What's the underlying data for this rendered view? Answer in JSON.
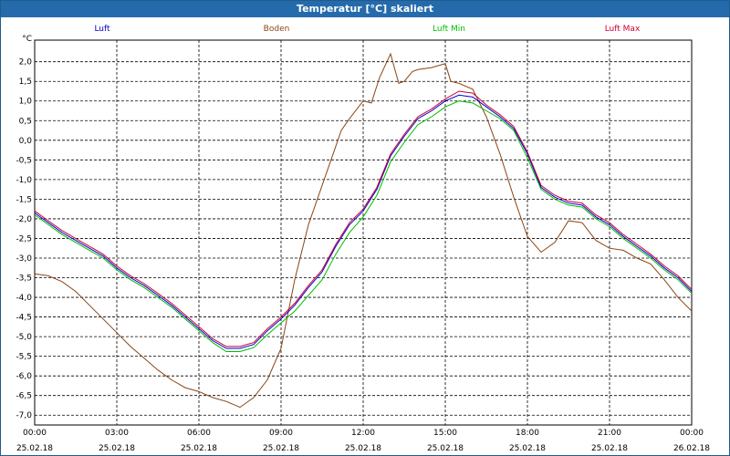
{
  "window": {
    "title": "Temperatur [°C] skaliert"
  },
  "chart_data": {
    "type": "line",
    "title": "Temperatur [°C] skaliert",
    "ylabel": "°C",
    "ylim": [
      -7.25,
      2.55
    ],
    "xlim": [
      0,
      24
    ],
    "grid": true,
    "legend_position": "top",
    "yticks": [
      "2,0",
      "1,5",
      "1,0",
      "0,5",
      "0,0",
      "-0,5",
      "-1,0",
      "-1,5",
      "-2,0",
      "-2,5",
      "-3,0",
      "-3,5",
      "-4,0",
      "-4,5",
      "-5,0",
      "-5,5",
      "-6,0",
      "-6,5",
      "-7,0"
    ],
    "ytick_values": [
      2.0,
      1.5,
      1.0,
      0.5,
      0.0,
      -0.5,
      -1.0,
      -1.5,
      -2.0,
      -2.5,
      -3.0,
      -3.5,
      -4.0,
      -4.5,
      -5.0,
      -5.5,
      -6.0,
      -6.5,
      -7.0
    ],
    "xticks": [
      {
        "time": "00:00",
        "date": "25.02.18",
        "hour": 0
      },
      {
        "time": "03:00",
        "date": "25.02.18",
        "hour": 3
      },
      {
        "time": "06:00",
        "date": "25.02.18",
        "hour": 6
      },
      {
        "time": "09:00",
        "date": "25.02.18",
        "hour": 9
      },
      {
        "time": "12:00",
        "date": "25.02.18",
        "hour": 12
      },
      {
        "time": "15:00",
        "date": "25.02.18",
        "hour": 15
      },
      {
        "time": "18:00",
        "date": "25.02.18",
        "hour": 18
      },
      {
        "time": "21:00",
        "date": "25.02.18",
        "hour": 21
      },
      {
        "time": "00:00",
        "date": "26.02.18",
        "hour": 24
      }
    ],
    "series": [
      {
        "name": "Luft",
        "color": "#0000cc",
        "offset": 0.0,
        "x": [
          0,
          0.5,
          1,
          1.5,
          2,
          2.5,
          3,
          3.5,
          4,
          4.5,
          5,
          5.5,
          6,
          6.5,
          7,
          7.5,
          8,
          8.5,
          9,
          9.5,
          10,
          10.5,
          11,
          11.5,
          12,
          12.5,
          13,
          13.5,
          14,
          14.5,
          15,
          15.5,
          16,
          16.5,
          17,
          17.5,
          18,
          18.5,
          19,
          19.5,
          20,
          20.5,
          21,
          21.5,
          22,
          22.5,
          23,
          23.5,
          24
        ],
        "y": [
          -1.85,
          -2.1,
          -2.35,
          -2.55,
          -2.75,
          -2.95,
          -3.25,
          -3.5,
          -3.7,
          -3.95,
          -4.2,
          -4.5,
          -4.8,
          -5.1,
          -5.3,
          -5.3,
          -5.2,
          -4.85,
          -4.55,
          -4.2,
          -3.75,
          -3.35,
          -2.7,
          -2.15,
          -1.8,
          -1.25,
          -0.4,
          0.1,
          0.55,
          0.75,
          1.0,
          1.15,
          1.1,
          0.85,
          0.6,
          0.3,
          -0.35,
          -1.2,
          -1.45,
          -1.6,
          -1.65,
          -1.95,
          -2.15,
          -2.45,
          -2.7,
          -2.95,
          -3.25,
          -3.5,
          -3.85
        ]
      },
      {
        "name": "Boden",
        "color": "#8b4513",
        "x": [
          0,
          0.5,
          1,
          1.5,
          2,
          2.5,
          3,
          3.5,
          4,
          4.5,
          5,
          5.5,
          6,
          6.5,
          7,
          7.5,
          8,
          8.5,
          9,
          9.5,
          10,
          10.5,
          11,
          11.2,
          11.5,
          12,
          12.3,
          12.6,
          13,
          13.3,
          13.5,
          13.8,
          14,
          14.5,
          15,
          15.2,
          15.5,
          16,
          16.5,
          17,
          17.5,
          18,
          18.5,
          19,
          19.5,
          20,
          20.5,
          21,
          21.5,
          22,
          22.5,
          23,
          23.5,
          24
        ],
        "y": [
          -3.4,
          -3.45,
          -3.6,
          -3.85,
          -4.2,
          -4.55,
          -4.9,
          -5.25,
          -5.55,
          -5.85,
          -6.1,
          -6.3,
          -6.4,
          -6.55,
          -6.65,
          -6.8,
          -6.55,
          -6.1,
          -5.3,
          -3.55,
          -2.15,
          -1.15,
          -0.15,
          0.25,
          0.55,
          1.0,
          0.95,
          1.6,
          2.2,
          1.45,
          1.5,
          1.75,
          1.8,
          1.85,
          1.95,
          1.5,
          1.45,
          1.3,
          0.6,
          -0.35,
          -1.45,
          -2.45,
          -2.85,
          -2.6,
          -2.05,
          -2.1,
          -2.55,
          -2.75,
          -2.8,
          -3.0,
          -3.15,
          -3.55,
          -4.0,
          -4.35
        ]
      },
      {
        "name": "Luft Min",
        "color": "#00bb00",
        "offset": -0.08,
        "x": [
          0,
          0.5,
          1,
          1.5,
          2,
          2.5,
          3,
          3.5,
          4,
          4.5,
          5,
          5.5,
          6,
          6.5,
          7,
          7.5,
          8,
          8.5,
          9,
          9.5,
          10,
          10.5,
          11,
          11.5,
          12,
          12.5,
          13,
          13.5,
          14,
          14.5,
          15,
          15.5,
          16,
          16.5,
          17,
          17.5,
          18,
          18.5,
          19,
          19.5,
          20,
          20.5,
          21,
          21.5,
          22,
          22.5,
          23,
          23.5,
          24
        ],
        "y": [
          -1.9,
          -2.15,
          -2.4,
          -2.6,
          -2.8,
          -3.0,
          -3.3,
          -3.55,
          -3.75,
          -4.0,
          -4.25,
          -4.55,
          -4.85,
          -5.15,
          -5.38,
          -5.38,
          -5.28,
          -4.95,
          -4.65,
          -4.35,
          -3.95,
          -3.55,
          -2.9,
          -2.35,
          -1.95,
          -1.4,
          -0.55,
          -0.05,
          0.4,
          0.6,
          0.85,
          1.0,
          0.95,
          0.75,
          0.55,
          0.25,
          -0.45,
          -1.25,
          -1.5,
          -1.65,
          -1.7,
          -2.0,
          -2.2,
          -2.5,
          -2.75,
          -3.0,
          -3.3,
          -3.55,
          -3.9
        ]
      },
      {
        "name": "Luft Max",
        "color": "#cc0033",
        "offset": 0.06,
        "x": [
          0,
          0.5,
          1,
          1.5,
          2,
          2.5,
          3,
          3.5,
          4,
          4.5,
          5,
          5.5,
          6,
          6.5,
          7,
          7.5,
          8,
          8.5,
          9,
          9.5,
          10,
          10.5,
          11,
          11.5,
          12,
          12.5,
          13,
          13.5,
          14,
          14.5,
          15,
          15.5,
          16,
          16.5,
          17,
          17.5,
          18,
          18.5,
          19,
          19.5,
          20,
          20.5,
          21,
          21.5,
          22,
          22.5,
          23,
          23.5,
          24
        ],
        "y": [
          -1.8,
          -2.05,
          -2.3,
          -2.5,
          -2.7,
          -2.9,
          -3.2,
          -3.45,
          -3.65,
          -3.9,
          -4.15,
          -4.45,
          -4.75,
          -5.05,
          -5.25,
          -5.25,
          -5.15,
          -4.8,
          -4.5,
          -4.15,
          -3.7,
          -3.3,
          -2.65,
          -2.1,
          -1.75,
          -1.2,
          -0.35,
          0.15,
          0.6,
          0.8,
          1.05,
          1.25,
          1.2,
          0.9,
          0.65,
          0.35,
          -0.3,
          -1.15,
          -1.4,
          -1.55,
          -1.6,
          -1.9,
          -2.1,
          -2.4,
          -2.65,
          -2.9,
          -3.2,
          -3.45,
          -3.8
        ]
      }
    ]
  }
}
